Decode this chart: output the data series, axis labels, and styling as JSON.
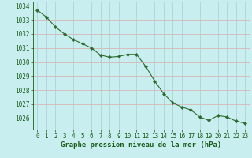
{
  "x": [
    0,
    1,
    2,
    3,
    4,
    5,
    6,
    7,
    8,
    9,
    10,
    11,
    12,
    13,
    14,
    15,
    16,
    17,
    18,
    19,
    20,
    21,
    22,
    23
  ],
  "y": [
    1033.7,
    1033.2,
    1032.5,
    1032.0,
    1031.6,
    1031.3,
    1031.0,
    1030.5,
    1030.35,
    1030.4,
    1030.55,
    1030.55,
    1029.7,
    1028.65,
    1027.75,
    1027.1,
    1026.8,
    1026.6,
    1026.1,
    1025.85,
    1026.2,
    1026.1,
    1025.8,
    1025.65
  ],
  "line_color": "#2d6a2d",
  "marker": "D",
  "marker_size": 2.2,
  "bg_color": "#c8eef0",
  "grid_color_h": "#ddaaaa",
  "grid_color_v": "#aacccc",
  "xlabel": "Graphe pression niveau de la mer (hPa)",
  "xlabel_color": "#1a5c1a",
  "xlabel_fontsize": 6.5,
  "tick_color": "#1a5c1a",
  "tick_fontsize": 5.5,
  "ylim": [
    1025.2,
    1034.3
  ],
  "xlim": [
    -0.5,
    23.5
  ],
  "yticks": [
    1026,
    1027,
    1028,
    1029,
    1030,
    1031,
    1032,
    1033,
    1034
  ],
  "xticks": [
    0,
    1,
    2,
    3,
    4,
    5,
    6,
    7,
    8,
    9,
    10,
    11,
    12,
    13,
    14,
    15,
    16,
    17,
    18,
    19,
    20,
    21,
    22,
    23
  ]
}
